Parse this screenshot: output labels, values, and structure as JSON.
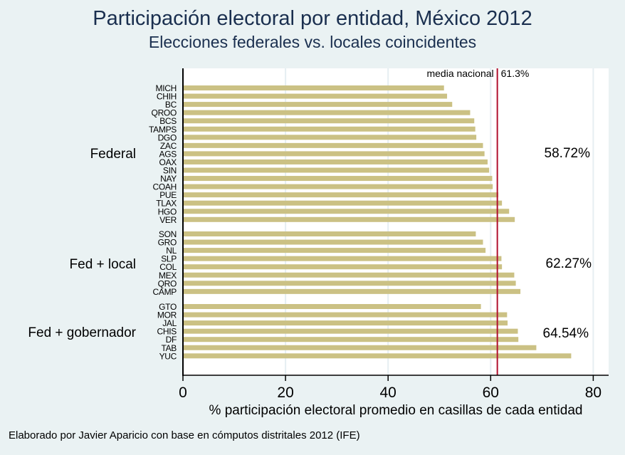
{
  "chart_data": {
    "type": "bar",
    "orientation": "horizontal",
    "title": "Participación electoral por entidad, México 2012",
    "subtitle": "Elecciones federales vs. locales coincidentes",
    "xlabel": "% participación electoral promedio en casillas de cada entidad",
    "ylabel": "",
    "xlim": [
      0,
      83
    ],
    "xticks": [
      0,
      20,
      40,
      60,
      80
    ],
    "grid": true,
    "bar_color": "#cbc184",
    "reference_line": {
      "value": 61.3,
      "label": "media nacional",
      "value_label": "61.3%",
      "color": "#b0102e"
    },
    "groups": [
      {
        "name": "Federal",
        "mean_label": "58.72%",
        "categories": [
          "MICH",
          "CHIH",
          "BC",
          "QROO",
          "BCS",
          "TAMPS",
          "DGO",
          "ZAC",
          "AGS",
          "OAX",
          "SIN",
          "NAY",
          "COAH",
          "PUE",
          "TLAX",
          "HGO",
          "VER"
        ],
        "values": [
          50.9,
          51.5,
          52.5,
          56.0,
          56.8,
          57.0,
          57.2,
          58.5,
          58.8,
          59.4,
          59.7,
          60.3,
          60.4,
          61.5,
          62.2,
          63.6,
          64.7
        ]
      },
      {
        "name": "Fed + local",
        "mean_label": "62.27%",
        "categories": [
          "SON",
          "GRO",
          "NL",
          "SLP",
          "COL",
          "MEX",
          "QRO",
          "CAMP"
        ],
        "values": [
          57.1,
          58.5,
          59.0,
          62.1,
          62.2,
          64.6,
          64.9,
          65.8
        ]
      },
      {
        "name": "Fed + gobernador",
        "mean_label": "64.54%",
        "categories": [
          "GTO",
          "MOR",
          "JAL",
          "CHIS",
          "DF",
          "TAB",
          "YUC"
        ],
        "values": [
          58.1,
          63.2,
          63.3,
          65.3,
          65.4,
          68.9,
          75.7
        ]
      }
    ]
  },
  "note": "Elaborado por Javier Aparicio con base en cómputos distritales 2012 (IFE)"
}
